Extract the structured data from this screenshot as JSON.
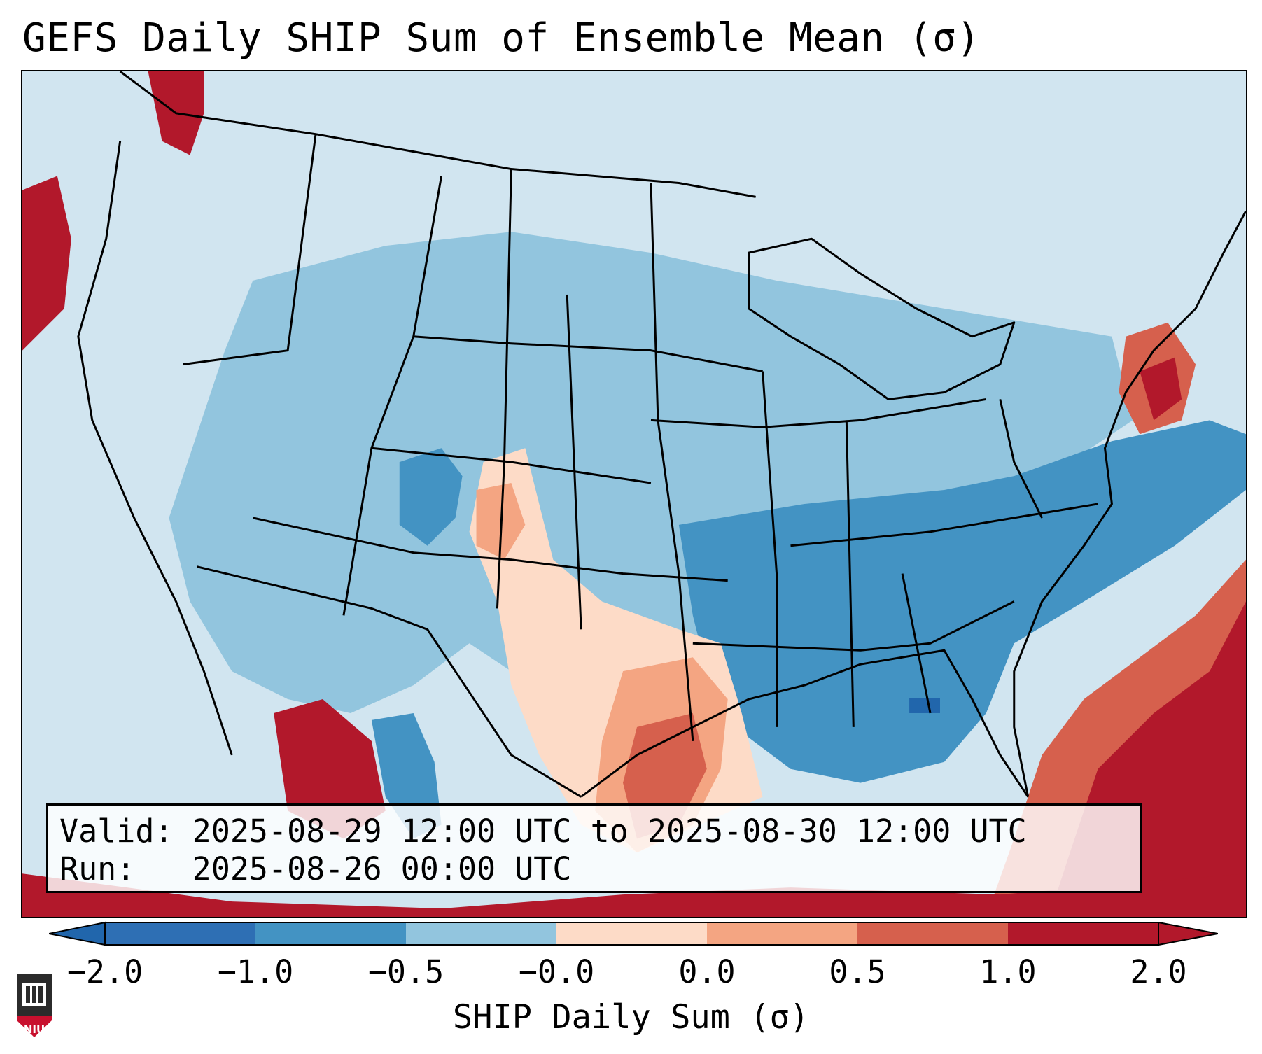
{
  "title": "GEFS Daily SHIP Sum of Ensemble Mean (σ)",
  "info": {
    "valid_line": "Valid: 2025-08-29 12:00 UTC to 2025-08-30 12:00 UTC",
    "run_line": "Run:   2025-08-26 00:00 UTC"
  },
  "colorbar": {
    "label": "SHIP Daily Sum (σ)",
    "ticks": [
      "−2.0",
      "−1.0",
      "−0.5",
      "−0.0",
      "0.0",
      "0.5",
      "1.0",
      "2.0"
    ],
    "colors": [
      "#2e6fb4",
      "#4393c3",
      "#92c5de",
      "#d1e5f0",
      "#fddbc7",
      "#f4a582",
      "#d6604d",
      "#b2182b"
    ],
    "extend": "both",
    "under_color": "#2166ac",
    "over_color": "#b2182b"
  },
  "logo": {
    "text": "NIU",
    "icon": "university-seal-icon"
  },
  "map": {
    "projection": "Lambert Conformal",
    "region": "Contiguous United States",
    "ocean_background_color": "#cfe4f0",
    "coastline_color": "#000000"
  }
}
